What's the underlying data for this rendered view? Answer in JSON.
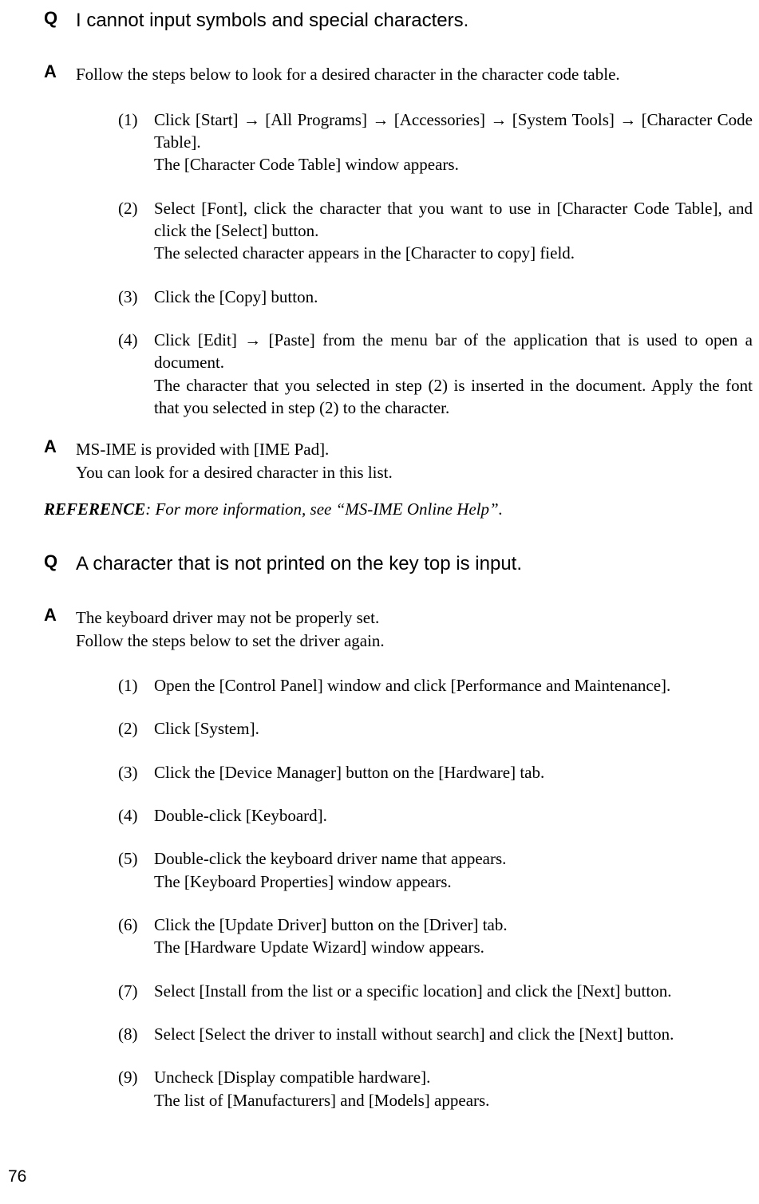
{
  "labels": {
    "Q": "Q",
    "A": "A"
  },
  "q1": {
    "question": "I cannot input symbols and special characters.",
    "answer1_intro": "Follow the steps below to look for a desired character in the character code table.",
    "steps": [
      {
        "num": "(1)",
        "text": "Click [Start] → [All Programs] → [Accessories] → [System Tools] → [Character Code Table].\nThe [Character Code Table] window appears."
      },
      {
        "num": "(2)",
        "text": "Select [Font], click the character that you want to use in [Character Code Table], and click the [Select] button.\nThe selected character appears in the [Character to copy] field."
      },
      {
        "num": "(3)",
        "text": "Click the [Copy] button."
      },
      {
        "num": "(4)",
        "text": "Click [Edit] → [Paste] from the menu bar of the application that is used to open a document.\nThe character that you selected in step (2) is inserted in the document. Apply the font that you selected in step (2) to the character."
      }
    ],
    "answer2_line1": "MS-IME is provided with [IME Pad].",
    "answer2_line2": "You can look for a desired character in this list."
  },
  "reference": {
    "label": "REFERENCE",
    "text": ":  For more information, see “MS-IME Online Help”."
  },
  "q2": {
    "question": "A character that is not printed on the key top is input.",
    "answer_line1": "The keyboard driver may not be properly set.",
    "answer_line2": "Follow the steps below to set the driver again.",
    "steps": [
      {
        "num": "(1)",
        "text": "Open the [Control Panel] window and click [Performance and Maintenance]."
      },
      {
        "num": "(2)",
        "text": "Click [System]."
      },
      {
        "num": "(3)",
        "text": "Click the [Device Manager] button on the [Hardware] tab."
      },
      {
        "num": "(4)",
        "text": "Double-click [Keyboard]."
      },
      {
        "num": "(5)",
        "text": "Double-click the keyboard driver name that appears.\nThe [Keyboard Properties] window appears."
      },
      {
        "num": "(6)",
        "text": "Click the [Update Driver] button on the [Driver] tab.\nThe [Hardware Update Wizard] window appears."
      },
      {
        "num": "(7)",
        "text": "Select [Install from the list or a specific location] and click the [Next] button."
      },
      {
        "num": "(8)",
        "text": "Select [Select the driver to install without search] and click the [Next] button."
      },
      {
        "num": "(9)",
        "text": "Uncheck [Display compatible hardware].\nThe list of [Manufacturers] and [Models] appears."
      }
    ]
  },
  "page_number": "76"
}
